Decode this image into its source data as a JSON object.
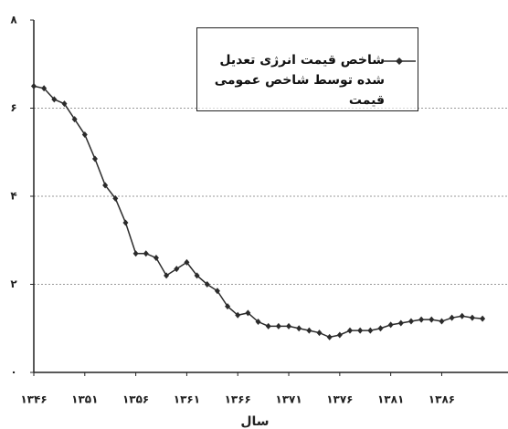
{
  "chart_data": {
    "type": "line",
    "xlabel": "سال",
    "x": [
      1346,
      1347,
      1348,
      1349,
      1350,
      1351,
      1352,
      1353,
      1354,
      1355,
      1356,
      1357,
      1358,
      1359,
      1360,
      1361,
      1362,
      1363,
      1364,
      1365,
      1366,
      1367,
      1368,
      1369,
      1370,
      1371,
      1372,
      1373,
      1374,
      1375,
      1376,
      1377,
      1378,
      1379,
      1380,
      1381,
      1382,
      1383,
      1384,
      1385,
      1386,
      1387,
      1388,
      1389,
      1390
    ],
    "series": [
      {
        "name": "شاخص قیمت انرژی تعدیل شده توسط شاخص عمومی قیمت",
        "color": "#2b2b2b",
        "values": [
          6.5,
          6.45,
          6.2,
          6.1,
          5.75,
          5.4,
          4.85,
          4.25,
          3.95,
          3.4,
          2.7,
          2.7,
          2.6,
          2.2,
          2.35,
          2.5,
          2.2,
          2.0,
          1.85,
          1.5,
          1.3,
          1.35,
          1.15,
          1.05,
          1.05,
          1.05,
          1.0,
          0.95,
          0.9,
          0.8,
          0.85,
          0.95,
          0.95,
          0.95,
          1.0,
          1.08,
          1.12,
          1.16,
          1.2,
          1.2,
          1.16,
          1.24,
          1.28,
          1.24,
          1.22
        ]
      }
    ],
    "xlim": [
      1346,
      1392.5
    ],
    "xticks": [
      {
        "value": 1346,
        "label": "۱۳۴۶"
      },
      {
        "value": 1351,
        "label": "۱۳۵۱"
      },
      {
        "value": 1356,
        "label": "۱۳۵۶"
      },
      {
        "value": 1361,
        "label": "۱۳۶۱"
      },
      {
        "value": 1366,
        "label": "۱۳۶۶"
      },
      {
        "value": 1371,
        "label": "۱۳۷۱"
      },
      {
        "value": 1376,
        "label": "۱۳۷۶"
      },
      {
        "value": 1381,
        "label": "۱۳۸۱"
      },
      {
        "value": 1386,
        "label": "۱۳۸۶"
      }
    ],
    "ylim": [
      0,
      8
    ],
    "yticks": [
      {
        "value": 0,
        "label": "۰"
      },
      {
        "value": 2,
        "label": "۲"
      },
      {
        "value": 4,
        "label": "۴"
      },
      {
        "value": 6,
        "label": "۶"
      },
      {
        "value": 8,
        "label": "۸"
      }
    ],
    "grid": true,
    "legend": "top"
  }
}
